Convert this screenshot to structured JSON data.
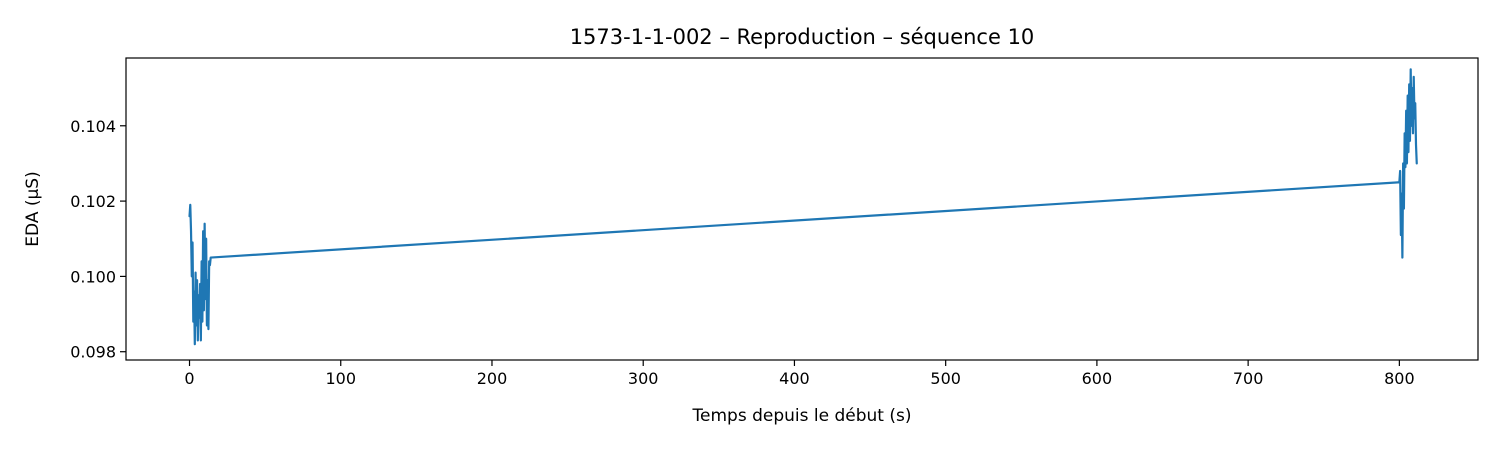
{
  "chart_data": {
    "type": "line",
    "title": "1573-1-1-002 – Reproduction – séquence 10",
    "xlabel": "Temps depuis le début (s)",
    "ylabel": "EDA (µS)",
    "xlim": [
      -42,
      852
    ],
    "ylim": [
      0.09778,
      0.1058
    ],
    "xticks": [
      0,
      100,
      200,
      300,
      400,
      500,
      600,
      700,
      800
    ],
    "xtick_labels": [
      "0",
      "100",
      "200",
      "300",
      "400",
      "500",
      "600",
      "700",
      "800"
    ],
    "yticks": [
      0.098,
      0.1,
      0.102,
      0.104
    ],
    "ytick_labels": [
      "0.098",
      "0.100",
      "0.102",
      "0.104"
    ],
    "grid": false,
    "legend": "none",
    "series": [
      {
        "color": "#1f77b4",
        "x": [
          0.0,
          0.5,
          1.0,
          1.5,
          2.0,
          2.5,
          3.0,
          3.5,
          4.0,
          4.5,
          5.0,
          5.5,
          6.0,
          6.5,
          7.0,
          7.5,
          8.0,
          8.5,
          9.0,
          9.5,
          10.0,
          10.5,
          11.0,
          11.5,
          12.0,
          12.5,
          13.0,
          13.5,
          14.0,
          800.0,
          800.5,
          801.0,
          801.5,
          802.0,
          802.5,
          803.0,
          803.5,
          804.0,
          804.5,
          805.0,
          805.5,
          806.0,
          806.5,
          807.0,
          807.5,
          808.0,
          808.5,
          809.0,
          809.5,
          810.0,
          810.5,
          811.0,
          811.5
        ],
        "y": [
          0.1016,
          0.1019,
          0.1012,
          0.1,
          0.1009,
          0.0988,
          0.0996,
          0.0982,
          0.1001,
          0.0987,
          0.0999,
          0.0983,
          0.0995,
          0.0989,
          0.0998,
          0.0983,
          0.1004,
          0.0988,
          0.1012,
          0.0991,
          0.1014,
          0.0994,
          0.101,
          0.0987,
          0.0999,
          0.0986,
          0.1004,
          0.1003,
          0.1005,
          0.1025,
          0.1028,
          0.1011,
          0.1022,
          0.1005,
          0.103,
          0.1018,
          0.1038,
          0.1029,
          0.1044,
          0.103,
          0.1048,
          0.1033,
          0.1051,
          0.1036,
          0.1055,
          0.104,
          0.105,
          0.1038,
          0.1053,
          0.1042,
          0.1046,
          0.1035,
          0.103
        ]
      }
    ]
  }
}
